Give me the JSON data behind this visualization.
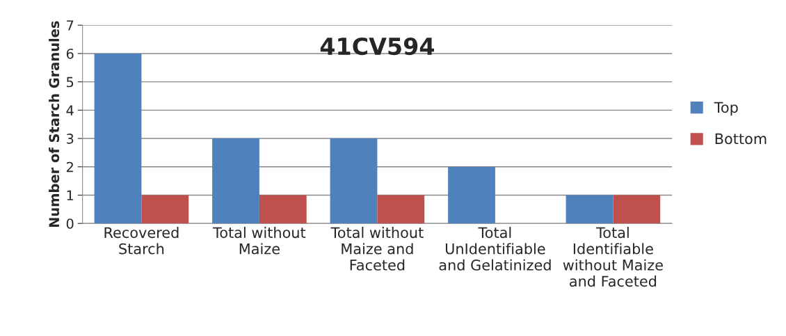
{
  "chart_data": {
    "type": "bar",
    "title": "41CV594",
    "ylabel": "Number of Starch Granules",
    "categories": [
      "Recovered Starch",
      "Total without Maize",
      "Total without Maize and Faceted",
      "Total UnIdentifiable and Gelatinized",
      "Total Identifiable without Maize and Faceted"
    ],
    "series": [
      {
        "name": "Top",
        "color": "#4f81bd",
        "values": [
          6,
          3,
          3,
          2,
          1
        ]
      },
      {
        "name": "Bottom",
        "color": "#c0504d",
        "values": [
          1,
          1,
          1,
          0,
          1
        ]
      }
    ],
    "ylim": [
      0,
      7
    ],
    "yticks": [
      0,
      1,
      2,
      3,
      4,
      5,
      6,
      7
    ],
    "grid": "y",
    "legend": "right"
  }
}
